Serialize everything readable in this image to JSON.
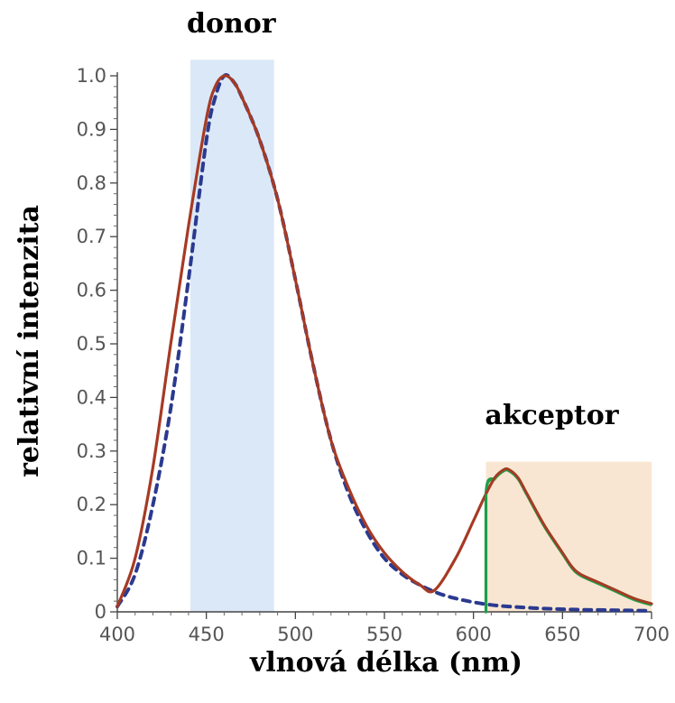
{
  "chart_data": {
    "type": "line",
    "xlabel": "vlnová délka (nm)",
    "ylabel": "relativní intenzita",
    "xlim": [
      400,
      700
    ],
    "ylim": [
      0,
      1.0
    ],
    "x_ticks": [
      400,
      450,
      500,
      550,
      600,
      650,
      700
    ],
    "y_ticks": [
      "0",
      "0.1",
      "0.2",
      "0.3",
      "0.4",
      "0.5",
      "0.6",
      "0.7",
      "0.8",
      "0.9",
      "1.0"
    ],
    "grid": false,
    "bands": [
      {
        "label": "donor",
        "x": [
          441,
          488
        ],
        "y": [
          0,
          1.03
        ],
        "color": "#dbe8f7"
      },
      {
        "label": "akceptor",
        "x": [
          607,
          700
        ],
        "y": [
          0,
          0.28
        ],
        "color": "#f9e6d2"
      }
    ],
    "series": [
      {
        "style": "dashed",
        "color": "#2b3a8f",
        "x": [
          400,
          410,
          420,
          430,
          440,
          450,
          455,
          460,
          465,
          470,
          480,
          490,
          500,
          510,
          520,
          530,
          540,
          550,
          560,
          570,
          580,
          590,
          600,
          610,
          620,
          640,
          660,
          680,
          700
        ],
        "y": [
          0.01,
          0.07,
          0.2,
          0.38,
          0.62,
          0.88,
          0.96,
          1.0,
          0.99,
          0.96,
          0.88,
          0.77,
          0.62,
          0.46,
          0.32,
          0.22,
          0.15,
          0.1,
          0.07,
          0.05,
          0.035,
          0.025,
          0.018,
          0.013,
          0.01,
          0.006,
          0.004,
          0.003,
          0.002
        ]
      },
      {
        "style": "solid",
        "color": "#a63a24",
        "x": [
          400,
          410,
          420,
          430,
          440,
          450,
          455,
          460,
          465,
          470,
          480,
          490,
          500,
          510,
          520,
          530,
          540,
          550,
          560,
          570,
          578,
          590,
          600,
          607,
          612,
          617,
          620,
          625,
          630,
          640,
          650,
          655,
          660,
          670,
          680,
          690,
          700
        ],
        "y": [
          0.01,
          0.1,
          0.27,
          0.5,
          0.72,
          0.92,
          0.98,
          1.0,
          0.99,
          0.96,
          0.88,
          0.77,
          0.62,
          0.46,
          0.32,
          0.23,
          0.16,
          0.11,
          0.075,
          0.05,
          0.04,
          0.1,
          0.17,
          0.22,
          0.25,
          0.265,
          0.265,
          0.25,
          0.22,
          0.16,
          0.11,
          0.085,
          0.07,
          0.055,
          0.04,
          0.025,
          0.015
        ]
      },
      {
        "style": "solid",
        "color": "#1f9e4a",
        "x": [
          607,
          607,
          612,
          617,
          620,
          625,
          630,
          640,
          650,
          655,
          660,
          670,
          680,
          690,
          700
        ],
        "y": [
          0.0,
          0.22,
          0.25,
          0.265,
          0.265,
          0.25,
          0.22,
          0.16,
          0.11,
          0.085,
          0.07,
          0.055,
          0.04,
          0.025,
          0.015
        ]
      }
    ]
  }
}
